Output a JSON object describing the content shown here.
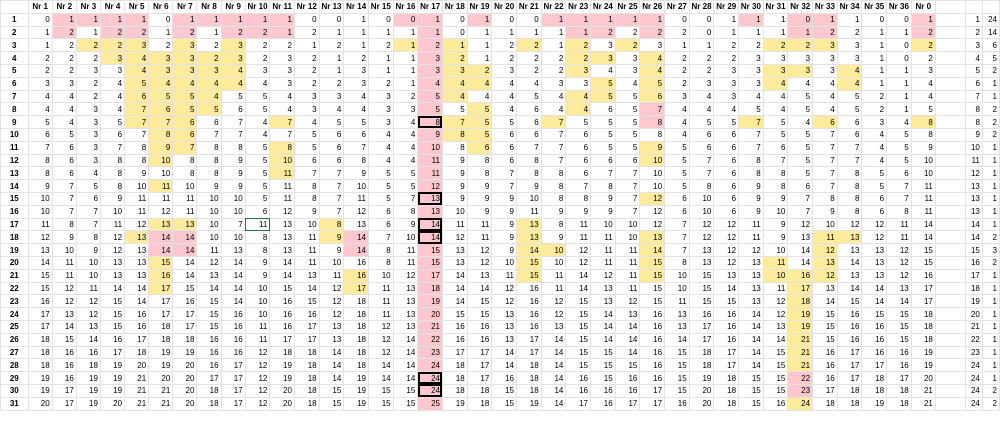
{
  "column_headers": [
    "Nr 1",
    "Nr 2",
    "Nr 3",
    "Nr 4",
    "Nr 5",
    "Nr 6",
    "Nr 7",
    "Nr 8",
    "Nr 9",
    "Nr 10",
    "Nr 11",
    "Nr 12",
    "Nr 13",
    "Nr 14",
    "Nr 15",
    "Nr 16",
    "Nr 17",
    "Nr 18",
    "Nr 19",
    "Nr 20",
    "Nr 21",
    "Nr 22",
    "Nr 23",
    "Nr 24",
    "Nr 25",
    "Nr 26",
    "Nr 27",
    "Nr 28",
    "Nr 29",
    "Nr 30",
    "Nr 31",
    "Nr 32",
    "Nr 33",
    "Nr 34",
    "Nr 35",
    "Nr 36",
    "Nr 0"
  ],
  "colors": {
    "pink": "#ffc7ce",
    "yellow": "#ffeb9c",
    "selection": "#217346"
  },
  "rows": [
    {
      "label": "1",
      "values": [
        "0",
        "1",
        "1",
        "1",
        "1",
        "0",
        "1",
        "1",
        "1",
        "1",
        "1",
        "0",
        "0",
        "1",
        "0",
        "0",
        "1",
        "0",
        "1",
        "0",
        "0",
        "1",
        "1",
        "1",
        "1",
        "1",
        "0",
        "0",
        "1",
        "1",
        "1",
        "0",
        "1",
        "1",
        "0",
        "0",
        "1"
      ],
      "extra": [
        "1",
        "24"
      ]
    },
    {
      "label": "2",
      "values": [
        "1",
        "2",
        "1",
        "2",
        "2",
        "1",
        "2",
        "1",
        "2",
        "2",
        "1",
        "2",
        "1",
        "1",
        "1",
        "1",
        "1",
        "0",
        "1",
        "1",
        "1",
        "1",
        "1",
        "2",
        "2",
        "2",
        "2",
        "0",
        "1",
        "1",
        "1",
        "1",
        "2",
        "2",
        "1",
        "1",
        "2"
      ],
      "extra": [
        "2",
        "14"
      ]
    },
    {
      "label": "3",
      "values": [
        "1",
        "2",
        "2",
        "2",
        "3",
        "2",
        "3",
        "2",
        "3",
        "2",
        "2",
        "1",
        "2",
        "1",
        "2",
        "1",
        "2",
        "1",
        "1",
        "2",
        "2",
        "1",
        "2",
        "3",
        "2",
        "3",
        "1",
        "1",
        "2",
        "2",
        "2",
        "2",
        "3",
        "3",
        "1",
        "0",
        "2"
      ],
      "extra": [
        "3",
        "6"
      ]
    },
    {
      "label": "4",
      "values": [
        "2",
        "2",
        "2",
        "3",
        "4",
        "3",
        "3",
        "2",
        "3",
        "2",
        "3",
        "2",
        "1",
        "2",
        "1",
        "1",
        "3",
        "2",
        "1",
        "2",
        "2",
        "2",
        "2",
        "3",
        "3",
        "4",
        "2",
        "2",
        "2",
        "3",
        "3",
        "3",
        "3",
        "3",
        "1",
        "0",
        "2"
      ],
      "extra": [
        "4",
        "5"
      ]
    },
    {
      "label": "5",
      "values": [
        "2",
        "2",
        "3",
        "3",
        "4",
        "3",
        "3",
        "3",
        "4",
        "3",
        "3",
        "2",
        "1",
        "3",
        "1",
        "1",
        "3",
        "3",
        "2",
        "3",
        "2",
        "2",
        "3",
        "4",
        "3",
        "4",
        "2",
        "2",
        "3",
        "3",
        "3",
        "3",
        "3",
        "4",
        "1",
        "1",
        "3"
      ],
      "extra": [
        "5",
        "2"
      ]
    },
    {
      "label": "6",
      "values": [
        "3",
        "3",
        "2",
        "4",
        "5",
        "4",
        "4",
        "4",
        "4",
        "4",
        "3",
        "2",
        "2",
        "3",
        "2",
        "1",
        "4",
        "4",
        "4",
        "4",
        "4",
        "3",
        "3",
        "5",
        "4",
        "5",
        "2",
        "3",
        "3",
        "3",
        "4",
        "4",
        "4",
        "4",
        "1",
        "1",
        "4"
      ],
      "extra": [
        "6",
        "1"
      ]
    },
    {
      "label": "7",
      "values": [
        "4",
        "4",
        "2",
        "4",
        "6",
        "5",
        "5",
        "4",
        "5",
        "5",
        "4",
        "3",
        "3",
        "4",
        "3",
        "2",
        "5",
        "4",
        "4",
        "4",
        "5",
        "4",
        "4",
        "5",
        "5",
        "6",
        "3",
        "4",
        "3",
        "4",
        "4",
        "5",
        "4",
        "5",
        "2",
        "1",
        "4"
      ],
      "extra": [
        "7",
        "1"
      ]
    },
    {
      "label": "8",
      "values": [
        "4",
        "4",
        "3",
        "4",
        "7",
        "6",
        "5",
        "5",
        "6",
        "5",
        "4",
        "3",
        "4",
        "4",
        "3",
        "3",
        "5",
        "5",
        "5",
        "4",
        "6",
        "4",
        "4",
        "6",
        "5",
        "7",
        "4",
        "4",
        "4",
        "5",
        "4",
        "5",
        "4",
        "5",
        "2",
        "1",
        "5"
      ],
      "extra": [
        "8",
        "2"
      ]
    },
    {
      "label": "9",
      "values": [
        "5",
        "4",
        "3",
        "5",
        "7",
        "7",
        "6",
        "6",
        "7",
        "4",
        "7",
        "4",
        "5",
        "5",
        "3",
        "4",
        "8",
        "7",
        "5",
        "5",
        "6",
        "7",
        "5",
        "5",
        "5",
        "8",
        "4",
        "5",
        "5",
        "7",
        "5",
        "4",
        "6",
        "6",
        "3",
        "4",
        "8"
      ],
      "extra": [
        "8",
        "2"
      ]
    },
    {
      "label": "10",
      "values": [
        "6",
        "5",
        "3",
        "6",
        "7",
        "8",
        "6",
        "7",
        "7",
        "4",
        "7",
        "5",
        "6",
        "6",
        "4",
        "4",
        "9",
        "8",
        "5",
        "6",
        "6",
        "7",
        "6",
        "5",
        "5",
        "8",
        "4",
        "6",
        "6",
        "7",
        "5",
        "5",
        "7",
        "6",
        "4",
        "5",
        "8"
      ],
      "extra": [
        "9",
        "2"
      ]
    },
    {
      "label": "11",
      "values": [
        "7",
        "6",
        "3",
        "7",
        "8",
        "9",
        "7",
        "8",
        "8",
        "5",
        "8",
        "5",
        "6",
        "7",
        "4",
        "4",
        "10",
        "8",
        "6",
        "6",
        "7",
        "7",
        "6",
        "5",
        "5",
        "9",
        "5",
        "6",
        "6",
        "7",
        "6",
        "5",
        "7",
        "7",
        "4",
        "5",
        "9"
      ],
      "extra": [
        "10",
        "1"
      ]
    },
    {
      "label": "12",
      "values": [
        "8",
        "6",
        "3",
        "8",
        "8",
        "10",
        "8",
        "8",
        "9",
        "5",
        "10",
        "6",
        "6",
        "8",
        "4",
        "4",
        "11",
        "9",
        "8",
        "6",
        "8",
        "7",
        "6",
        "6",
        "6",
        "10",
        "5",
        "7",
        "6",
        "8",
        "7",
        "5",
        "7",
        "7",
        "4",
        "5",
        "10"
      ],
      "extra": [
        "11",
        "1"
      ]
    },
    {
      "label": "13",
      "values": [
        "8",
        "6",
        "4",
        "8",
        "9",
        "10",
        "8",
        "8",
        "9",
        "5",
        "11",
        "7",
        "7",
        "9",
        "5",
        "5",
        "11",
        "9",
        "8",
        "7",
        "8",
        "8",
        "6",
        "7",
        "7",
        "10",
        "5",
        "7",
        "6",
        "8",
        "8",
        "5",
        "7",
        "8",
        "5",
        "6",
        "10"
      ],
      "extra": [
        "12",
        "1"
      ]
    },
    {
      "label": "14",
      "values": [
        "9",
        "7",
        "5",
        "8",
        "10",
        "11",
        "10",
        "9",
        "9",
        "5",
        "11",
        "8",
        "7",
        "10",
        "5",
        "5",
        "12",
        "9",
        "9",
        "7",
        "9",
        "8",
        "7",
        "8",
        "7",
        "10",
        "5",
        "8",
        "6",
        "9",
        "8",
        "6",
        "7",
        "8",
        "5",
        "7",
        "11"
      ],
      "extra": [
        "13",
        "1"
      ]
    },
    {
      "label": "15",
      "values": [
        "10",
        "7",
        "6",
        "9",
        "11",
        "11",
        "11",
        "10",
        "10",
        "5",
        "11",
        "8",
        "7",
        "11",
        "5",
        "7",
        "13",
        "9",
        "9",
        "9",
        "10",
        "8",
        "8",
        "9",
        "7",
        "12",
        "6",
        "10",
        "6",
        "9",
        "9",
        "7",
        "8",
        "8",
        "6",
        "7",
        "11"
      ],
      "extra": [
        "13",
        "1"
      ]
    },
    {
      "label": "16",
      "values": [
        "10",
        "7",
        "7",
        "10",
        "11",
        "12",
        "11",
        "10",
        "10",
        "6",
        "12",
        "9",
        "7",
        "12",
        "6",
        "8",
        "13",
        "10",
        "9",
        "9",
        "11",
        "9",
        "9",
        "9",
        "7",
        "12",
        "6",
        "10",
        "6",
        "9",
        "10",
        "7",
        "9",
        "8",
        "6",
        "8",
        "11"
      ],
      "extra": [
        "13",
        "1"
      ]
    },
    {
      "label": "17",
      "values": [
        "11",
        "8",
        "7",
        "11",
        "12",
        "13",
        "13",
        "10",
        "7",
        "11",
        "13",
        "10",
        "8",
        "13",
        "6",
        "9",
        "14",
        "11",
        "11",
        "9",
        "13",
        "8",
        "11",
        "10",
        "10",
        "12",
        "7",
        "12",
        "12",
        "11",
        "9",
        "12",
        "10",
        "12",
        "12",
        "11",
        "14"
      ],
      "extra": [
        "14",
        "1"
      ]
    },
    {
      "label": "18",
      "values": [
        "12",
        "9",
        "8",
        "12",
        "13",
        "14",
        "14",
        "10",
        "10",
        "8",
        "13",
        "11",
        "9",
        "14",
        "7",
        "10",
        "14",
        "12",
        "11",
        "9",
        "13",
        "9",
        "11",
        "11",
        "10",
        "13",
        "7",
        "12",
        "12",
        "11",
        "9",
        "13",
        "11",
        "13",
        "12",
        "11",
        "14"
      ],
      "extra": [
        "14",
        "2"
      ]
    },
    {
      "label": "19",
      "values": [
        "13",
        "10",
        "9",
        "12",
        "13",
        "14",
        "14",
        "11",
        "13",
        "8",
        "13",
        "11",
        "9",
        "14",
        "8",
        "11",
        "15",
        "13",
        "12",
        "9",
        "14",
        "10",
        "12",
        "11",
        "11",
        "14",
        "7",
        "13",
        "12",
        "12",
        "10",
        "14",
        "12",
        "13",
        "13",
        "12",
        "15"
      ],
      "extra": [
        "15",
        "3"
      ]
    },
    {
      "label": "20",
      "values": [
        "14",
        "11",
        "10",
        "13",
        "13",
        "15",
        "14",
        "12",
        "14",
        "9",
        "14",
        "11",
        "10",
        "16",
        "8",
        "11",
        "15",
        "13",
        "12",
        "10",
        "15",
        "10",
        "12",
        "11",
        "11",
        "15",
        "8",
        "13",
        "12",
        "13",
        "11",
        "14",
        "13",
        "14",
        "13",
        "12",
        "15"
      ],
      "extra": [
        "16",
        "2"
      ]
    },
    {
      "label": "21",
      "values": [
        "15",
        "11",
        "10",
        "13",
        "13",
        "16",
        "14",
        "13",
        "14",
        "9",
        "14",
        "13",
        "11",
        "16",
        "10",
        "12",
        "17",
        "14",
        "13",
        "11",
        "15",
        "11",
        "14",
        "12",
        "11",
        "15",
        "10",
        "15",
        "13",
        "13",
        "10",
        "16",
        "12",
        "13",
        "13",
        "12",
        "16"
      ],
      "extra": [
        "17",
        "1"
      ]
    },
    {
      "label": "22",
      "values": [
        "15",
        "12",
        "11",
        "14",
        "14",
        "17",
        "15",
        "14",
        "14",
        "10",
        "15",
        "14",
        "12",
        "17",
        "11",
        "13",
        "18",
        "14",
        "14",
        "12",
        "16",
        "11",
        "14",
        "13",
        "11",
        "15",
        "10",
        "15",
        "14",
        "13",
        "11",
        "17",
        "13",
        "14",
        "14",
        "13",
        "17"
      ],
      "extra": [
        "18",
        "1"
      ]
    },
    {
      "label": "23",
      "values": [
        "16",
        "12",
        "12",
        "15",
        "14",
        "17",
        "16",
        "15",
        "14",
        "10",
        "16",
        "15",
        "12",
        "18",
        "11",
        "13",
        "19",
        "14",
        "15",
        "12",
        "16",
        "12",
        "15",
        "13",
        "12",
        "15",
        "11",
        "15",
        "15",
        "13",
        "12",
        "18",
        "14",
        "15",
        "14",
        "14",
        "17"
      ],
      "extra": [
        "19",
        "1"
      ]
    },
    {
      "label": "24",
      "values": [
        "17",
        "13",
        "12",
        "15",
        "16",
        "17",
        "17",
        "15",
        "16",
        "10",
        "16",
        "16",
        "12",
        "18",
        "11",
        "13",
        "20",
        "15",
        "15",
        "13",
        "16",
        "12",
        "15",
        "14",
        "13",
        "16",
        "13",
        "16",
        "16",
        "14",
        "12",
        "19",
        "15",
        "16",
        "15",
        "15",
        "18"
      ],
      "extra": [
        "20",
        "1"
      ]
    },
    {
      "label": "25",
      "values": [
        "17",
        "14",
        "13",
        "15",
        "16",
        "18",
        "17",
        "15",
        "16",
        "11",
        "16",
        "17",
        "13",
        "18",
        "12",
        "13",
        "21",
        "16",
        "16",
        "13",
        "16",
        "13",
        "15",
        "14",
        "14",
        "16",
        "13",
        "17",
        "16",
        "14",
        "13",
        "19",
        "15",
        "16",
        "16",
        "15",
        "18"
      ],
      "extra": [
        "21",
        "1"
      ]
    },
    {
      "label": "26",
      "values": [
        "18",
        "15",
        "14",
        "16",
        "17",
        "18",
        "18",
        "16",
        "16",
        "11",
        "17",
        "17",
        "13",
        "18",
        "12",
        "14",
        "22",
        "16",
        "16",
        "13",
        "17",
        "14",
        "15",
        "14",
        "14",
        "16",
        "14",
        "17",
        "16",
        "14",
        "14",
        "21",
        "15",
        "16",
        "16",
        "15",
        "18"
      ],
      "extra": [
        "22",
        "1"
      ]
    },
    {
      "label": "27",
      "values": [
        "18",
        "16",
        "16",
        "17",
        "18",
        "19",
        "19",
        "16",
        "16",
        "12",
        "18",
        "18",
        "14",
        "18",
        "12",
        "14",
        "23",
        "17",
        "17",
        "14",
        "17",
        "14",
        "15",
        "15",
        "14",
        "16",
        "15",
        "18",
        "17",
        "14",
        "15",
        "21",
        "16",
        "17",
        "16",
        "16",
        "19"
      ],
      "extra": [
        "23",
        "1"
      ]
    },
    {
      "label": "28",
      "values": [
        "18",
        "16",
        "18",
        "19",
        "20",
        "19",
        "20",
        "16",
        "17",
        "12",
        "19",
        "18",
        "14",
        "18",
        "14",
        "14",
        "24",
        "18",
        "17",
        "14",
        "18",
        "14",
        "15",
        "15",
        "15",
        "16",
        "15",
        "18",
        "17",
        "14",
        "15",
        "21",
        "16",
        "17",
        "17",
        "16",
        "19"
      ],
      "extra": [
        "24",
        "1"
      ]
    },
    {
      "label": "29",
      "values": [
        "19",
        "16",
        "19",
        "19",
        "21",
        "20",
        "20",
        "17",
        "17",
        "12",
        "19",
        "18",
        "14",
        "19",
        "14",
        "14",
        "24",
        "18",
        "17",
        "16",
        "18",
        "14",
        "16",
        "15",
        "16",
        "16",
        "15",
        "19",
        "18",
        "15",
        "15",
        "22",
        "16",
        "17",
        "18",
        "17",
        "20"
      ],
      "extra": [
        "24",
        "1"
      ]
    },
    {
      "label": "30",
      "values": [
        "19",
        "17",
        "19",
        "19",
        "21",
        "21",
        "20",
        "18",
        "17",
        "12",
        "20",
        "18",
        "15",
        "19",
        "15",
        "15",
        "24",
        "18",
        "18",
        "15",
        "18",
        "14",
        "16",
        "16",
        "16",
        "17",
        "15",
        "20",
        "18",
        "15",
        "15",
        "23",
        "17",
        "18",
        "18",
        "18",
        "21"
      ],
      "extra": [
        "24",
        "2"
      ]
    },
    {
      "label": "31",
      "values": [
        "20",
        "17",
        "19",
        "20",
        "21",
        "21",
        "20",
        "18",
        "17",
        "12",
        "20",
        "18",
        "15",
        "19",
        "15",
        "15",
        "25",
        "19",
        "18",
        "15",
        "19",
        "14",
        "17",
        "16",
        "17",
        "17",
        "16",
        "20",
        "18",
        "15",
        "16",
        "24",
        "18",
        "18",
        "19",
        "18",
        "21"
      ],
      "extra": [
        "24",
        "2"
      ]
    }
  ]
}
